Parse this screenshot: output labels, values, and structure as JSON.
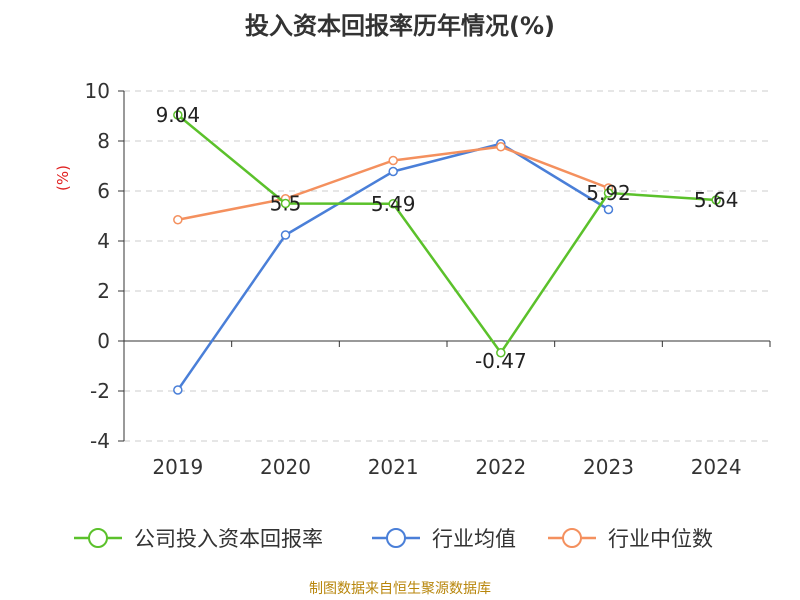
{
  "title": "投入资本回报率历年情况(%)",
  "source": "制图数据来自恒生聚源数据库",
  "colors": {
    "company": "#5bc12b",
    "industry_avg": "#4a7fd8",
    "industry_median": "#f4905e",
    "ylabel": "#e02020",
    "axis": "#333333",
    "grid": "#cccccc"
  },
  "chart_data": {
    "type": "line",
    "title": "投入资本回报率历年情况(%)",
    "xlabel": "",
    "ylabel": "(%)",
    "ylim": [
      -4,
      10
    ],
    "yticks": [
      -4,
      -2,
      0,
      2,
      4,
      6,
      8,
      10
    ],
    "ytick_labels": [
      "-4",
      "-2",
      "0",
      "2",
      "4",
      "6",
      "8",
      "10"
    ],
    "categories": [
      "2019",
      "2020",
      "2021",
      "2022",
      "2023",
      "2024"
    ],
    "grid": true,
    "legend_position": "bottom",
    "series": [
      {
        "name": "公司投入资本回报率",
        "values": [
          9.04,
          5.5,
          5.49,
          -0.47,
          5.92,
          5.64
        ],
        "labels": [
          "9.04",
          "5.5",
          "5.49",
          "-0.47",
          "5.92",
          "5.64"
        ],
        "color": "#5bc12b"
      },
      {
        "name": "行业均值",
        "values": [
          -1.96,
          4.24,
          6.78,
          7.89,
          5.26,
          null
        ],
        "color": "#4a7fd8"
      },
      {
        "name": "行业中位数",
        "values": [
          4.85,
          5.69,
          7.22,
          7.77,
          6.12,
          null
        ],
        "color": "#f4905e"
      }
    ]
  }
}
